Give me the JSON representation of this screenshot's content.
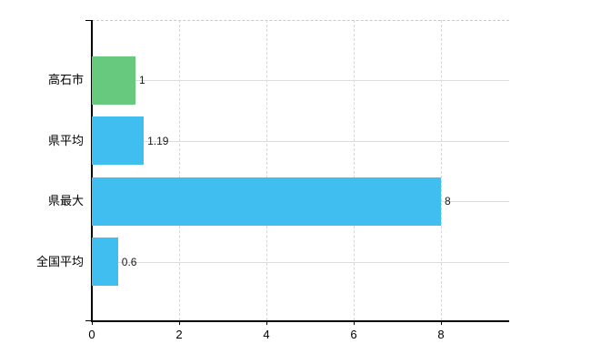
{
  "chart_data": {
    "type": "bar",
    "orientation": "horizontal",
    "categories": [
      "高石市",
      "県平均",
      "県最大",
      "全国平均"
    ],
    "values": [
      1,
      1.19,
      8,
      0.6
    ],
    "value_labels": [
      "1",
      "1.19",
      "8",
      "0.6"
    ],
    "bar_colors": [
      "#66C97E",
      "#3FBEEF",
      "#3FBEEF",
      "#3FBEEF"
    ],
    "x_ticks": [
      0,
      2,
      4,
      6,
      8
    ],
    "x_tick_labels": [
      "0",
      "2",
      "4",
      "6",
      "8"
    ],
    "xlim": [
      0,
      9.56
    ],
    "grid": true,
    "legend": null,
    "title": "",
    "xlabel": "",
    "ylabel": ""
  },
  "colors": {
    "accent_blue": "#3FBEEF",
    "accent_green": "#66C97E",
    "axis": "#000000",
    "grid": "#dcdcdc",
    "top_border": "#c8c8c8",
    "text": "#000000"
  }
}
